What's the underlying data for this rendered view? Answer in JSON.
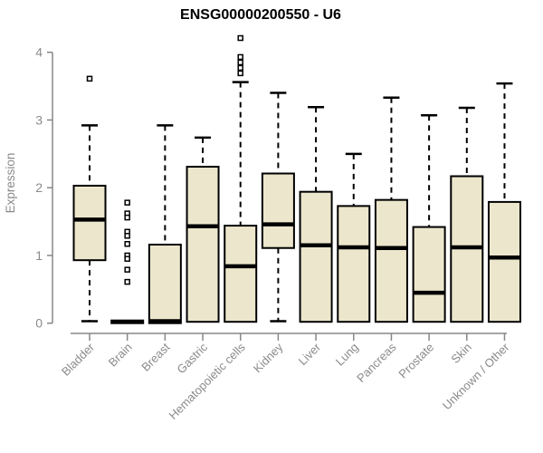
{
  "chart_data": {
    "type": "boxplot",
    "title": "ENSG00000200550 - U6",
    "xlabel": "",
    "ylabel": "Expression",
    "ylim": [
      0,
      4
    ],
    "yticks": [
      0,
      1,
      2,
      3,
      4
    ],
    "grid": false,
    "legend": false,
    "categories": [
      "Bladder",
      "Brain",
      "Breast",
      "Gastric",
      "Hematopoietic cells",
      "Kidney",
      "Liver",
      "Lung",
      "Pancreas",
      "Prostate",
      "Skin",
      "Unknown / Other"
    ],
    "boxes": [
      {
        "category": "Bladder",
        "whisker_low": 0.03,
        "q1": 0.93,
        "median": 1.53,
        "q3": 2.03,
        "whisker_high": 2.92,
        "outliers": [
          3.61
        ]
      },
      {
        "category": "Brain",
        "whisker_low": 0.0,
        "q1": 0.0,
        "median": 0.02,
        "q3": 0.04,
        "whisker_high": 0.05,
        "outliers": [
          1.78,
          1.62,
          1.56,
          1.35,
          1.29,
          1.17,
          1.0,
          0.95,
          0.79,
          0.61
        ]
      },
      {
        "category": "Breast",
        "whisker_low": 0.0,
        "q1": 0.0,
        "median": 0.03,
        "q3": 1.16,
        "whisker_high": 2.92,
        "outliers": []
      },
      {
        "category": "Gastric",
        "whisker_low": 0.02,
        "q1": 0.02,
        "median": 1.43,
        "q3": 2.31,
        "whisker_high": 2.74,
        "outliers": []
      },
      {
        "category": "Hematopoietic cells",
        "whisker_low": 0.02,
        "q1": 0.02,
        "median": 0.84,
        "q3": 1.44,
        "whisker_high": 3.56,
        "outliers": [
          4.21,
          3.93,
          3.85,
          3.77,
          3.69
        ]
      },
      {
        "category": "Kidney",
        "whisker_low": 0.03,
        "q1": 1.11,
        "median": 1.46,
        "q3": 2.21,
        "whisker_high": 3.4,
        "outliers": []
      },
      {
        "category": "Liver",
        "whisker_low": 0.02,
        "q1": 0.02,
        "median": 1.15,
        "q3": 1.94,
        "whisker_high": 3.19,
        "outliers": []
      },
      {
        "category": "Lung",
        "whisker_low": 0.02,
        "q1": 0.02,
        "median": 1.12,
        "q3": 1.73,
        "whisker_high": 2.5,
        "outliers": []
      },
      {
        "category": "Pancreas",
        "whisker_low": 0.02,
        "q1": 0.02,
        "median": 1.11,
        "q3": 1.82,
        "whisker_high": 3.33,
        "outliers": []
      },
      {
        "category": "Prostate",
        "whisker_low": 0.02,
        "q1": 0.02,
        "median": 0.45,
        "q3": 1.42,
        "whisker_high": 3.07,
        "outliers": []
      },
      {
        "category": "Skin",
        "whisker_low": 0.02,
        "q1": 0.02,
        "median": 1.12,
        "q3": 2.17,
        "whisker_high": 3.18,
        "outliers": []
      },
      {
        "category": "Unknown / Other",
        "whisker_low": 0.02,
        "q1": 0.02,
        "median": 0.97,
        "q3": 1.79,
        "whisker_high": 3.54,
        "outliers": []
      }
    ],
    "colors": {
      "box_fill": "#ece6cc",
      "box_border": "#000000",
      "median": "#000000",
      "whisker": "#000000",
      "outlier_fill": "#ffffff",
      "axis": "#878787",
      "tick_label": "#8a8a8a",
      "title": "#000000"
    }
  }
}
